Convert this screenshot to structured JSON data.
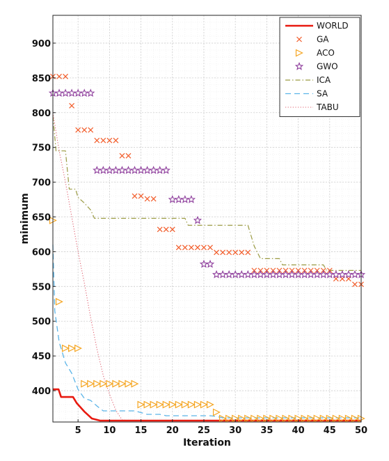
{
  "chart_data": {
    "type": "line",
    "xlabel": "Iteration",
    "ylabel": "minimum",
    "xlim": [
      1,
      50
    ],
    "ylim": [
      355,
      940
    ],
    "xticks": [
      5,
      10,
      15,
      20,
      25,
      30,
      35,
      40,
      45,
      50
    ],
    "yticks": [
      400,
      450,
      500,
      550,
      600,
      650,
      700,
      750,
      800,
      850,
      900
    ],
    "grid": true,
    "legend_position": "top-right",
    "series": [
      {
        "name": "WORLD",
        "style": "solid",
        "color": "#e8190f",
        "points": [
          [
            1,
            402
          ],
          [
            1.9,
            402
          ],
          [
            2.3,
            391
          ],
          [
            3.8,
            391
          ],
          [
            4.2,
            391
          ],
          [
            4.8,
            382
          ],
          [
            6,
            370
          ],
          [
            7.2,
            360
          ],
          [
            8.5,
            357
          ],
          [
            50,
            357
          ]
        ]
      },
      {
        "name": "GA",
        "style": "marker-x",
        "color": "#f25c2a",
        "points": [
          [
            1,
            852
          ],
          [
            2,
            852
          ],
          [
            3,
            852
          ],
          [
            4,
            810
          ],
          [
            5,
            775
          ],
          [
            6,
            775
          ],
          [
            7,
            775
          ],
          [
            8,
            760
          ],
          [
            9,
            760
          ],
          [
            10,
            760
          ],
          [
            11,
            760
          ],
          [
            12,
            738
          ],
          [
            13,
            738
          ],
          [
            14,
            680
          ],
          [
            15,
            680
          ],
          [
            16,
            676
          ],
          [
            17,
            676
          ],
          [
            18,
            632
          ],
          [
            19,
            632
          ],
          [
            20,
            632
          ],
          [
            21,
            606
          ],
          [
            22,
            606
          ],
          [
            23,
            606
          ],
          [
            24,
            606
          ],
          [
            25,
            606
          ],
          [
            26,
            606
          ],
          [
            27,
            599
          ],
          [
            28,
            599
          ],
          [
            29,
            599
          ],
          [
            30,
            599
          ],
          [
            31,
            599
          ],
          [
            32,
            599
          ],
          [
            33,
            573
          ],
          [
            34,
            573
          ],
          [
            35,
            573
          ],
          [
            36,
            573
          ],
          [
            37,
            573
          ],
          [
            38,
            573
          ],
          [
            39,
            573
          ],
          [
            40,
            573
          ],
          [
            41,
            573
          ],
          [
            42,
            573
          ],
          [
            43,
            573
          ],
          [
            44,
            573
          ],
          [
            45,
            573
          ],
          [
            46,
            561
          ],
          [
            47,
            561
          ],
          [
            48,
            561
          ],
          [
            49,
            553
          ],
          [
            50,
            553
          ]
        ]
      },
      {
        "name": "ACO",
        "style": "marker-triangle",
        "color": "#f5a623",
        "points": [
          [
            1,
            645
          ],
          [
            2,
            528
          ],
          [
            3,
            461
          ],
          [
            4,
            461
          ],
          [
            5,
            461
          ],
          [
            6,
            410
          ],
          [
            7,
            410
          ],
          [
            8,
            410
          ],
          [
            9,
            410
          ],
          [
            10,
            410
          ],
          [
            11,
            410
          ],
          [
            12,
            410
          ],
          [
            13,
            410
          ],
          [
            14,
            410
          ],
          [
            15,
            380
          ],
          [
            16,
            380
          ],
          [
            17,
            380
          ],
          [
            18,
            380
          ],
          [
            19,
            380
          ],
          [
            20,
            380
          ],
          [
            21,
            380
          ],
          [
            22,
            380
          ],
          [
            23,
            380
          ],
          [
            24,
            380
          ],
          [
            25,
            380
          ],
          [
            26,
            380
          ],
          [
            27,
            369
          ],
          [
            28,
            360
          ],
          [
            29,
            360
          ],
          [
            30,
            360
          ],
          [
            31,
            360
          ],
          [
            32,
            360
          ],
          [
            33,
            360
          ],
          [
            34,
            360
          ],
          [
            35,
            360
          ],
          [
            36,
            360
          ],
          [
            37,
            360
          ],
          [
            38,
            360
          ],
          [
            39,
            360
          ],
          [
            40,
            360
          ],
          [
            41,
            360
          ],
          [
            42,
            360
          ],
          [
            43,
            360
          ],
          [
            44,
            360
          ],
          [
            45,
            360
          ],
          [
            46,
            360
          ],
          [
            47,
            360
          ],
          [
            48,
            360
          ],
          [
            49,
            360
          ],
          [
            50,
            360
          ]
        ]
      },
      {
        "name": "GWO",
        "style": "marker-star",
        "color": "#8e3e9c",
        "points": [
          [
            1,
            828
          ],
          [
            2,
            828
          ],
          [
            3,
            828
          ],
          [
            4,
            828
          ],
          [
            5,
            828
          ],
          [
            6,
            828
          ],
          [
            7,
            828
          ],
          [
            8,
            717
          ],
          [
            9,
            717
          ],
          [
            10,
            717
          ],
          [
            11,
            717
          ],
          [
            12,
            717
          ],
          [
            13,
            717
          ],
          [
            14,
            717
          ],
          [
            15,
            717
          ],
          [
            16,
            717
          ],
          [
            17,
            717
          ],
          [
            18,
            717
          ],
          [
            19,
            717
          ],
          [
            20,
            675
          ],
          [
            21,
            675
          ],
          [
            22,
            675
          ],
          [
            23,
            675
          ],
          [
            24,
            645
          ],
          [
            25,
            582
          ],
          [
            26,
            582
          ],
          [
            27,
            567
          ],
          [
            28,
            567
          ],
          [
            29,
            567
          ],
          [
            30,
            567
          ],
          [
            31,
            567
          ],
          [
            32,
            567
          ],
          [
            33,
            567
          ],
          [
            34,
            567
          ],
          [
            35,
            567
          ],
          [
            36,
            567
          ],
          [
            37,
            567
          ],
          [
            38,
            567
          ],
          [
            39,
            567
          ],
          [
            40,
            567
          ],
          [
            41,
            567
          ],
          [
            42,
            567
          ],
          [
            43,
            567
          ],
          [
            44,
            567
          ],
          [
            45,
            567
          ],
          [
            46,
            567
          ],
          [
            47,
            567
          ],
          [
            48,
            567
          ],
          [
            49,
            567
          ],
          [
            50,
            567
          ]
        ]
      },
      {
        "name": "ICA",
        "style": "dashdot",
        "color": "#9a9a42",
        "points": [
          [
            1,
            795
          ],
          [
            1.5,
            745
          ],
          [
            3,
            745
          ],
          [
            3.6,
            690
          ],
          [
            4.6,
            690
          ],
          [
            5,
            678
          ],
          [
            6,
            670
          ],
          [
            7,
            660
          ],
          [
            7.6,
            648
          ],
          [
            22,
            648
          ],
          [
            22.5,
            638
          ],
          [
            32,
            638
          ],
          [
            33,
            608
          ],
          [
            34,
            590
          ],
          [
            37,
            590
          ],
          [
            37.5,
            581
          ],
          [
            44,
            581
          ],
          [
            44.5,
            573
          ],
          [
            50,
            573
          ]
        ]
      },
      {
        "name": "SA",
        "style": "dashed",
        "color": "#5ab4e8",
        "points": [
          [
            1,
            610
          ],
          [
            1.3,
            515
          ],
          [
            2,
            470
          ],
          [
            3,
            440
          ],
          [
            4,
            425
          ],
          [
            5,
            402
          ],
          [
            6,
            389
          ],
          [
            7,
            386
          ],
          [
            8,
            378
          ],
          [
            9,
            371
          ],
          [
            14,
            371
          ],
          [
            16,
            366
          ],
          [
            18,
            366
          ],
          [
            19,
            364
          ],
          [
            26,
            364
          ],
          [
            27,
            363
          ],
          [
            28,
            361
          ],
          [
            50,
            361
          ]
        ]
      },
      {
        "name": "TABU",
        "style": "dotted",
        "color": "#e06070",
        "points": [
          [
            1,
            800
          ],
          [
            2,
            745
          ],
          [
            3,
            700
          ],
          [
            4,
            650
          ],
          [
            5,
            600
          ],
          [
            6,
            555
          ],
          [
            7,
            505
          ],
          [
            8,
            460
          ],
          [
            9,
            422
          ],
          [
            10,
            395
          ],
          [
            11,
            372
          ],
          [
            12,
            358
          ],
          [
            13,
            357
          ],
          [
            50,
            357
          ]
        ]
      }
    ]
  }
}
